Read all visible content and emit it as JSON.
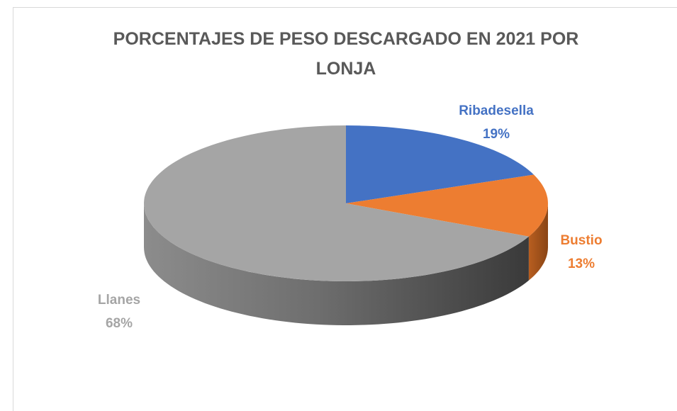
{
  "chart_data": {
    "type": "pie",
    "title": "PORCENTAJES DE PESO DESCARGADO EN 2021 POR LONJA",
    "categories": [
      "Ribadesella",
      "Bustio",
      "Llanes"
    ],
    "values": [
      19,
      13,
      68
    ],
    "value_labels": [
      "19%",
      "13%",
      "68%"
    ],
    "colors": [
      "#4472c4",
      "#ed7d31",
      "#a5a5a5"
    ]
  }
}
